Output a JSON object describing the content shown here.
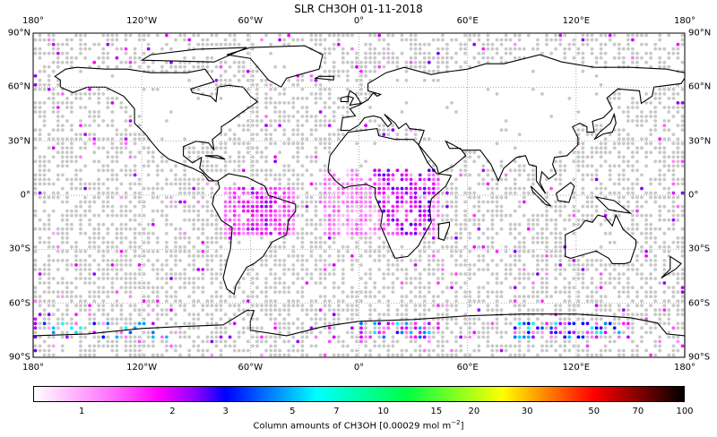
{
  "title": "SLR CH3OH 01-11-2018",
  "lon_ticks": [
    {
      "value": -180,
      "label": "180°"
    },
    {
      "value": -120,
      "label": "120°W"
    },
    {
      "value": -60,
      "label": "60°W"
    },
    {
      "value": 0,
      "label": "0°"
    },
    {
      "value": 60,
      "label": "60°E"
    },
    {
      "value": 120,
      "label": "120°E"
    },
    {
      "value": 180,
      "label": "180°"
    }
  ],
  "lat_ticks": [
    {
      "value": 90,
      "label": "90°N"
    },
    {
      "value": 60,
      "label": "60°N"
    },
    {
      "value": 30,
      "label": "30°N"
    },
    {
      "value": 0,
      "label": "0°"
    },
    {
      "value": -30,
      "label": "30°S"
    },
    {
      "value": -60,
      "label": "60°S"
    },
    {
      "value": -90,
      "label": "90°S"
    }
  ],
  "colorbar": {
    "label": "Column amounts of CH3OH [0.00029 mol m",
    "label_exp": "−2",
    "label_end": "]",
    "scale": "log",
    "range": [
      0.69,
      100
    ],
    "ticks": [
      {
        "value": 1,
        "label": "1"
      },
      {
        "value": 2,
        "label": "2"
      },
      {
        "value": 3,
        "label": "3"
      },
      {
        "value": 5,
        "label": "5"
      },
      {
        "value": 7,
        "label": "7"
      },
      {
        "value": 10,
        "label": "10"
      },
      {
        "value": 15,
        "label": "15"
      },
      {
        "value": 20,
        "label": "20"
      },
      {
        "value": 30,
        "label": "30"
      },
      {
        "value": 50,
        "label": "50"
      },
      {
        "value": 70,
        "label": "70"
      },
      {
        "value": 100,
        "label": "100"
      }
    ],
    "colormap": [
      {
        "value": 0.69,
        "color": "#ffffff"
      },
      {
        "value": 1.3,
        "color": "#ff66ff"
      },
      {
        "value": 1.8,
        "color": "#ff00ff"
      },
      {
        "value": 2.4,
        "color": "#8800ff"
      },
      {
        "value": 3.0,
        "color": "#0000ff"
      },
      {
        "value": 6.0,
        "color": "#00ffff"
      },
      {
        "value": 12,
        "color": "#00ff44"
      },
      {
        "value": 25,
        "color": "#ffff00"
      },
      {
        "value": 50,
        "color": "#ff0000"
      },
      {
        "value": 70,
        "color": "#880000"
      },
      {
        "value": 100,
        "color": "#000000"
      }
    ]
  },
  "colors": {
    "missing_dot": "#c8c8c8",
    "coastline": "#000000",
    "grid": "#888888"
  }
}
